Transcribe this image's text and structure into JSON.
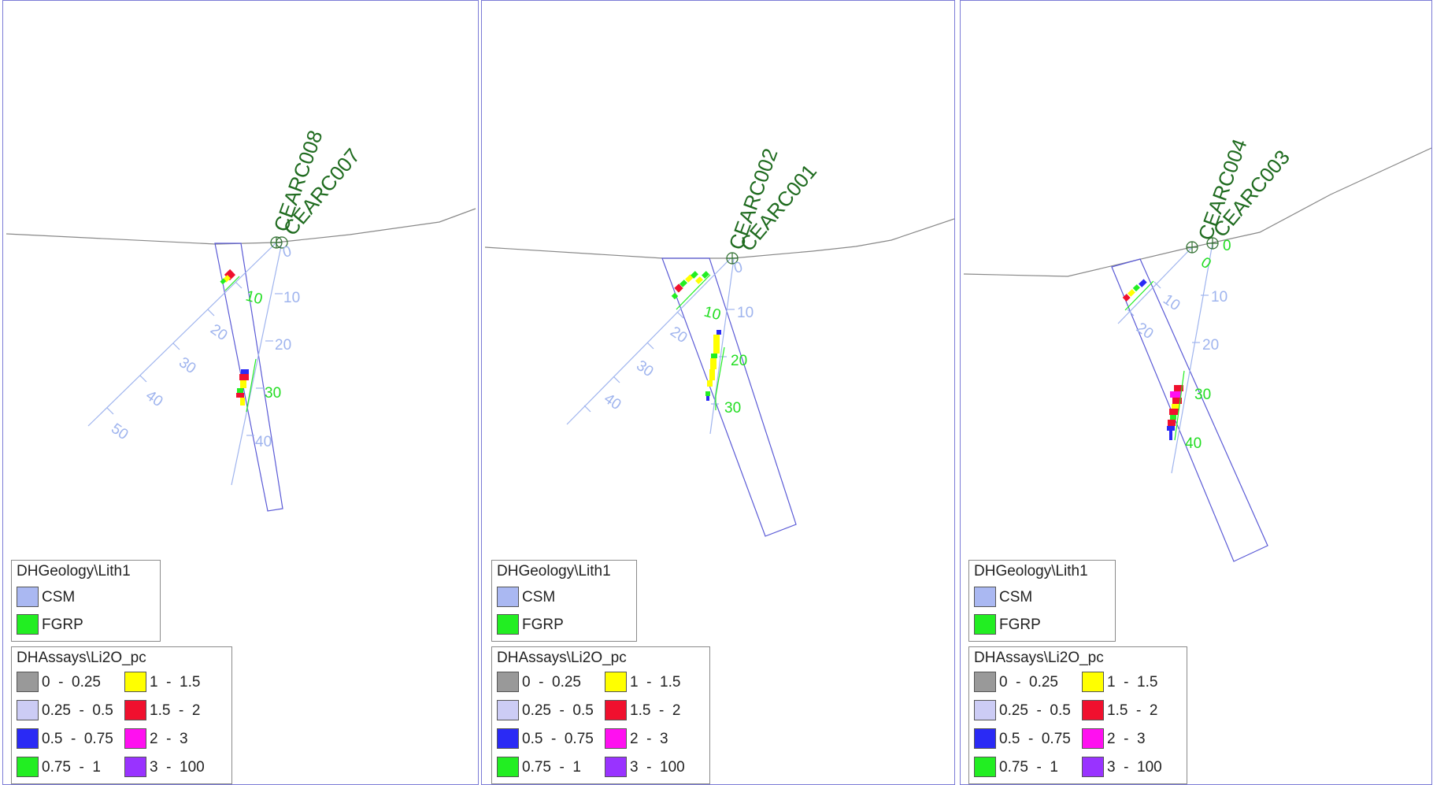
{
  "colors": {
    "frame": "#7b7bd6",
    "topo": "#888888",
    "trace": "#9fb4ee",
    "depth_label": "#9fb4ee",
    "interval_label": "#22dd22",
    "hole_label": "#1f6b1f",
    "window_box": "#5a5ad6",
    "collar": "#2f6f2f"
  },
  "geology_legend": {
    "title": "DHGeology\\Lith1",
    "items": [
      {
        "label": "CSM",
        "color": "#aab8f2"
      },
      {
        "label": "FGRP",
        "color": "#22ee22"
      }
    ]
  },
  "assay_legend": {
    "title": "DHAssays\\Li2O_pc",
    "items": [
      {
        "label": "0  -  0.25",
        "color": "#999999"
      },
      {
        "label": "1  -  1.5",
        "color": "#ffff00"
      },
      {
        "label": "0.25  -  0.5",
        "color": "#ccccf5"
      },
      {
        "label": "1.5  -  2",
        "color": "#f0102e"
      },
      {
        "label": "0.5  -  0.75",
        "color": "#2a2af5"
      },
      {
        "label": "2  -  3",
        "color": "#ff10f0"
      },
      {
        "label": "0.75  -  1",
        "color": "#22ee22"
      },
      {
        "label": "3  -  100",
        "color": "#9933ff"
      }
    ]
  },
  "sections": [
    {
      "holes": [
        {
          "name": "CEARC008",
          "labels": [
            "0",
            "10",
            "20",
            "30",
            "40",
            "50"
          ]
        },
        {
          "name": "CEARC007",
          "labels": [
            "0",
            "10",
            "20",
            "30",
            "40"
          ]
        }
      ],
      "interval_labels": [
        "10",
        "30"
      ]
    },
    {
      "holes": [
        {
          "name": "CEARC002",
          "labels": [
            "0",
            "10",
            "20",
            "30",
            "40"
          ]
        },
        {
          "name": "CEARC001",
          "labels": [
            "0",
            "10"
          ]
        }
      ],
      "interval_labels": [
        "10",
        "20",
        "30"
      ]
    },
    {
      "holes": [
        {
          "name": "CEARC004",
          "labels": [
            "0",
            "10",
            "20"
          ]
        },
        {
          "name": "CEARC003",
          "labels": [
            "0",
            "10",
            "20"
          ]
        }
      ],
      "interval_labels": [
        "30",
        "40"
      ]
    }
  ]
}
